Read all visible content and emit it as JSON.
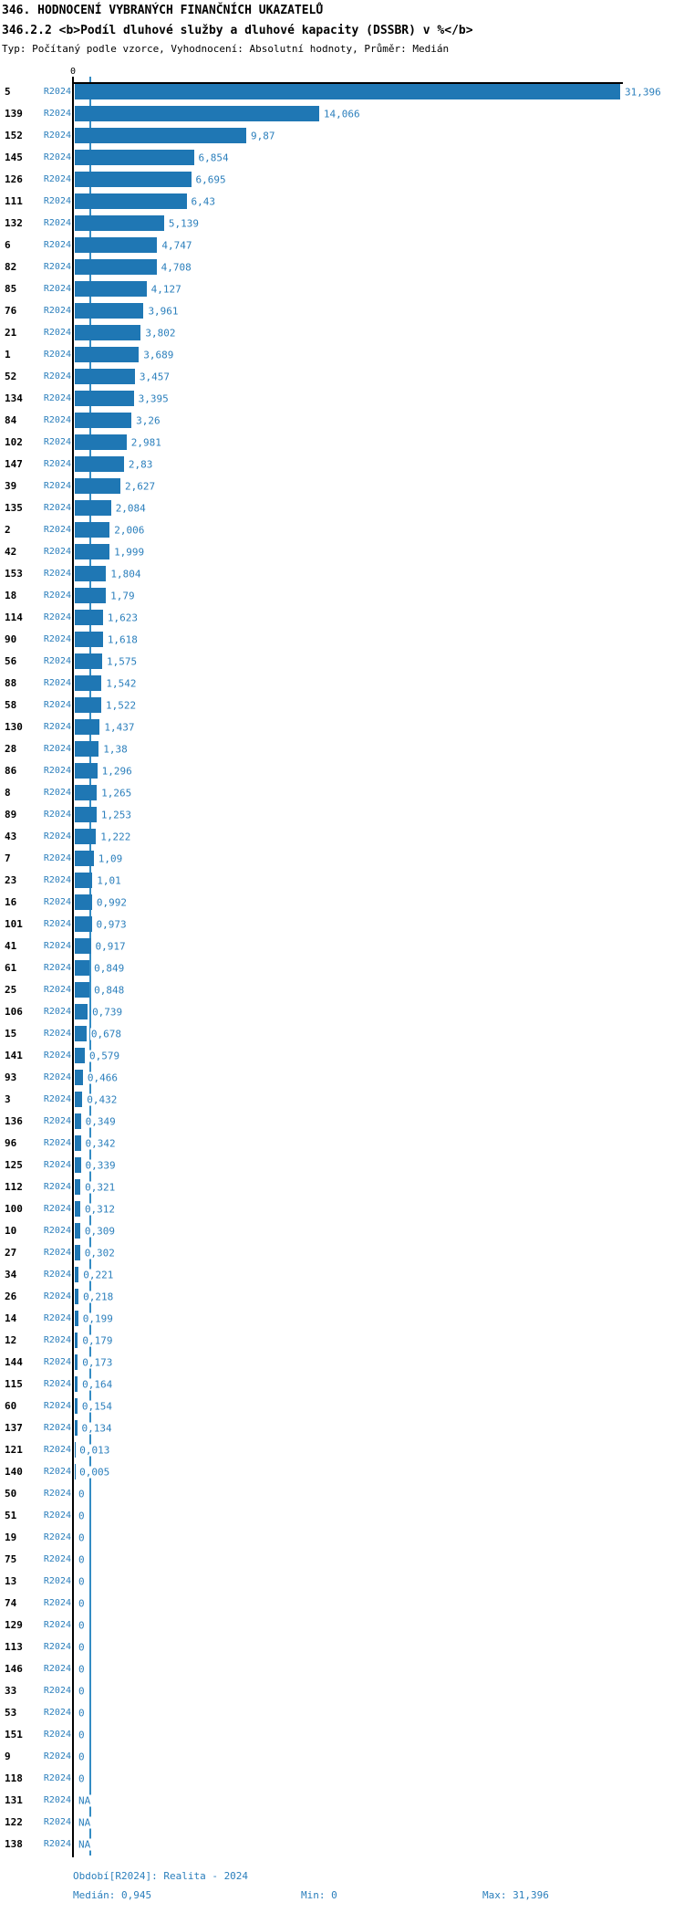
{
  "header": {
    "title": "346. HODNOCENÍ VYBRANÝCH FINANČNÍCH UKAZATELŮ",
    "subtitle": "346.2.2 <b>Podíl dluhové služby a dluhové kapacity (DSSBR) v %</b>",
    "meta": "Typ: Počítaný podle vzorce, Vyhodnocení: Absolutní hodnoty, Průměr: Medián"
  },
  "axis": {
    "zero_tick": "0"
  },
  "footer": {
    "period": "Období[R2024]: Realita - 2024",
    "median": "Medián: 0,945",
    "min": "Min: 0",
    "max": "Max: 31,396"
  },
  "colors": {
    "bar": "#1f77b4",
    "text_blue": "#2b7fbc",
    "median_line": "#348cc4",
    "axis": "#000000"
  },
  "chart_data": {
    "type": "bar",
    "orientation": "horizontal",
    "title": "346.2.2 Podíl dluhové služby a dluhové kapacity (DSSBR) v %",
    "xlabel": "",
    "ylabel": "",
    "xlim": [
      0,
      31.396
    ],
    "grid": false,
    "legend_position": "none",
    "period": "R2024",
    "median": 0.945,
    "min": 0,
    "max": 31.396,
    "rows": [
      {
        "id": "5",
        "period": "R2024",
        "value": 31.396,
        "label": "31,396"
      },
      {
        "id": "139",
        "period": "R2024",
        "value": 14.066,
        "label": "14,066"
      },
      {
        "id": "152",
        "period": "R2024",
        "value": 9.87,
        "label": "9,87"
      },
      {
        "id": "145",
        "period": "R2024",
        "value": 6.854,
        "label": "6,854"
      },
      {
        "id": "126",
        "period": "R2024",
        "value": 6.695,
        "label": "6,695"
      },
      {
        "id": "111",
        "period": "R2024",
        "value": 6.43,
        "label": "6,43"
      },
      {
        "id": "132",
        "period": "R2024",
        "value": 5.139,
        "label": "5,139"
      },
      {
        "id": "6",
        "period": "R2024",
        "value": 4.747,
        "label": "4,747"
      },
      {
        "id": "82",
        "period": "R2024",
        "value": 4.708,
        "label": "4,708"
      },
      {
        "id": "85",
        "period": "R2024",
        "value": 4.127,
        "label": "4,127"
      },
      {
        "id": "76",
        "period": "R2024",
        "value": 3.961,
        "label": "3,961"
      },
      {
        "id": "21",
        "period": "R2024",
        "value": 3.802,
        "label": "3,802"
      },
      {
        "id": "1",
        "period": "R2024",
        "value": 3.689,
        "label": "3,689"
      },
      {
        "id": "52",
        "period": "R2024",
        "value": 3.457,
        "label": "3,457"
      },
      {
        "id": "134",
        "period": "R2024",
        "value": 3.395,
        "label": "3,395"
      },
      {
        "id": "84",
        "period": "R2024",
        "value": 3.26,
        "label": "3,26"
      },
      {
        "id": "102",
        "period": "R2024",
        "value": 2.981,
        "label": "2,981"
      },
      {
        "id": "147",
        "period": "R2024",
        "value": 2.83,
        "label": "2,83"
      },
      {
        "id": "39",
        "period": "R2024",
        "value": 2.627,
        "label": "2,627"
      },
      {
        "id": "135",
        "period": "R2024",
        "value": 2.084,
        "label": "2,084"
      },
      {
        "id": "2",
        "period": "R2024",
        "value": 2.006,
        "label": "2,006"
      },
      {
        "id": "42",
        "period": "R2024",
        "value": 1.999,
        "label": "1,999"
      },
      {
        "id": "153",
        "period": "R2024",
        "value": 1.804,
        "label": "1,804"
      },
      {
        "id": "18",
        "period": "R2024",
        "value": 1.79,
        "label": "1,79"
      },
      {
        "id": "114",
        "period": "R2024",
        "value": 1.623,
        "label": "1,623"
      },
      {
        "id": "90",
        "period": "R2024",
        "value": 1.618,
        "label": "1,618"
      },
      {
        "id": "56",
        "period": "R2024",
        "value": 1.575,
        "label": "1,575"
      },
      {
        "id": "88",
        "period": "R2024",
        "value": 1.542,
        "label": "1,542"
      },
      {
        "id": "58",
        "period": "R2024",
        "value": 1.522,
        "label": "1,522"
      },
      {
        "id": "130",
        "period": "R2024",
        "value": 1.437,
        "label": "1,437"
      },
      {
        "id": "28",
        "period": "R2024",
        "value": 1.38,
        "label": "1,38"
      },
      {
        "id": "86",
        "period": "R2024",
        "value": 1.296,
        "label": "1,296"
      },
      {
        "id": "8",
        "period": "R2024",
        "value": 1.265,
        "label": "1,265"
      },
      {
        "id": "89",
        "period": "R2024",
        "value": 1.253,
        "label": "1,253"
      },
      {
        "id": "43",
        "period": "R2024",
        "value": 1.222,
        "label": "1,222"
      },
      {
        "id": "7",
        "period": "R2024",
        "value": 1.09,
        "label": "1,09"
      },
      {
        "id": "23",
        "period": "R2024",
        "value": 1.01,
        "label": "1,01"
      },
      {
        "id": "16",
        "period": "R2024",
        "value": 0.992,
        "label": "0,992"
      },
      {
        "id": "101",
        "period": "R2024",
        "value": 0.973,
        "label": "0,973"
      },
      {
        "id": "41",
        "period": "R2024",
        "value": 0.917,
        "label": "0,917"
      },
      {
        "id": "61",
        "period": "R2024",
        "value": 0.849,
        "label": "0,849"
      },
      {
        "id": "25",
        "period": "R2024",
        "value": 0.848,
        "label": "0,848"
      },
      {
        "id": "106",
        "period": "R2024",
        "value": 0.739,
        "label": "0,739"
      },
      {
        "id": "15",
        "period": "R2024",
        "value": 0.678,
        "label": "0,678"
      },
      {
        "id": "141",
        "period": "R2024",
        "value": 0.579,
        "label": "0,579"
      },
      {
        "id": "93",
        "period": "R2024",
        "value": 0.466,
        "label": "0,466"
      },
      {
        "id": "3",
        "period": "R2024",
        "value": 0.432,
        "label": "0,432"
      },
      {
        "id": "136",
        "period": "R2024",
        "value": 0.349,
        "label": "0,349"
      },
      {
        "id": "96",
        "period": "R2024",
        "value": 0.342,
        "label": "0,342"
      },
      {
        "id": "125",
        "period": "R2024",
        "value": 0.339,
        "label": "0,339"
      },
      {
        "id": "112",
        "period": "R2024",
        "value": 0.321,
        "label": "0,321"
      },
      {
        "id": "100",
        "period": "R2024",
        "value": 0.312,
        "label": "0,312"
      },
      {
        "id": "10",
        "period": "R2024",
        "value": 0.309,
        "label": "0,309"
      },
      {
        "id": "27",
        "period": "R2024",
        "value": 0.302,
        "label": "0,302"
      },
      {
        "id": "34",
        "period": "R2024",
        "value": 0.221,
        "label": "0,221"
      },
      {
        "id": "26",
        "period": "R2024",
        "value": 0.218,
        "label": "0,218"
      },
      {
        "id": "14",
        "period": "R2024",
        "value": 0.199,
        "label": "0,199"
      },
      {
        "id": "12",
        "period": "R2024",
        "value": 0.179,
        "label": "0,179"
      },
      {
        "id": "144",
        "period": "R2024",
        "value": 0.173,
        "label": "0,173"
      },
      {
        "id": "115",
        "period": "R2024",
        "value": 0.164,
        "label": "0,164"
      },
      {
        "id": "60",
        "period": "R2024",
        "value": 0.154,
        "label": "0,154"
      },
      {
        "id": "137",
        "period": "R2024",
        "value": 0.134,
        "label": "0,134"
      },
      {
        "id": "121",
        "period": "R2024",
        "value": 0.013,
        "label": "0,013"
      },
      {
        "id": "140",
        "period": "R2024",
        "value": 0.005,
        "label": "0,005"
      },
      {
        "id": "50",
        "period": "R2024",
        "value": 0,
        "label": "0"
      },
      {
        "id": "51",
        "period": "R2024",
        "value": 0,
        "label": "0"
      },
      {
        "id": "19",
        "period": "R2024",
        "value": 0,
        "label": "0"
      },
      {
        "id": "75",
        "period": "R2024",
        "value": 0,
        "label": "0"
      },
      {
        "id": "13",
        "period": "R2024",
        "value": 0,
        "label": "0"
      },
      {
        "id": "74",
        "period": "R2024",
        "value": 0,
        "label": "0"
      },
      {
        "id": "129",
        "period": "R2024",
        "value": 0,
        "label": "0"
      },
      {
        "id": "113",
        "period": "R2024",
        "value": 0,
        "label": "0"
      },
      {
        "id": "146",
        "period": "R2024",
        "value": 0,
        "label": "0"
      },
      {
        "id": "33",
        "period": "R2024",
        "value": 0,
        "label": "0"
      },
      {
        "id": "53",
        "period": "R2024",
        "value": 0,
        "label": "0"
      },
      {
        "id": "151",
        "period": "R2024",
        "value": 0,
        "label": "0"
      },
      {
        "id": "9",
        "period": "R2024",
        "value": 0,
        "label": "0"
      },
      {
        "id": "118",
        "period": "R2024",
        "value": 0,
        "label": "0"
      },
      {
        "id": "131",
        "period": "R2024",
        "value": null,
        "label": "NA"
      },
      {
        "id": "122",
        "period": "R2024",
        "value": null,
        "label": "NA"
      },
      {
        "id": "138",
        "period": "R2024",
        "value": null,
        "label": "NA"
      }
    ]
  }
}
